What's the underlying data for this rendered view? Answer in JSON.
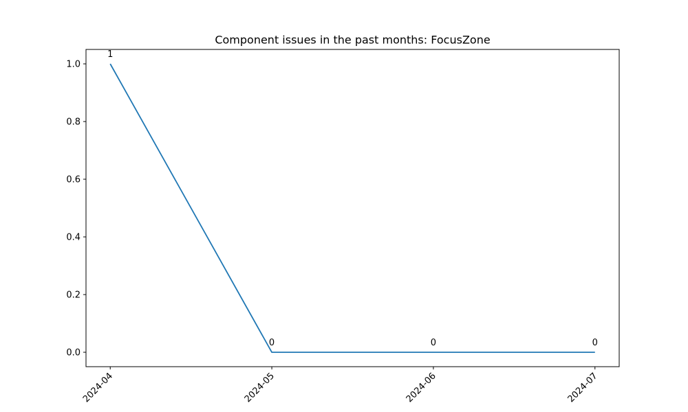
{
  "chart_data": {
    "type": "line",
    "title": "Component issues in the past months: FocusZone",
    "xlabel": "",
    "ylabel": "",
    "x": [
      "2024-04",
      "2024-05",
      "2024-06",
      "2024-07"
    ],
    "series": [
      {
        "values": [
          1,
          0,
          0,
          0
        ],
        "color": "#1f77b4"
      }
    ],
    "data_labels": [
      "1",
      "0",
      "0",
      "0"
    ],
    "yticks": [
      "0.0",
      "0.2",
      "0.4",
      "0.6",
      "0.8",
      "1.0"
    ],
    "ylim": [
      -0.05,
      1.05
    ],
    "xlim": [
      "2024-04",
      "2024-07"
    ],
    "grid": false,
    "legend": "none"
  }
}
